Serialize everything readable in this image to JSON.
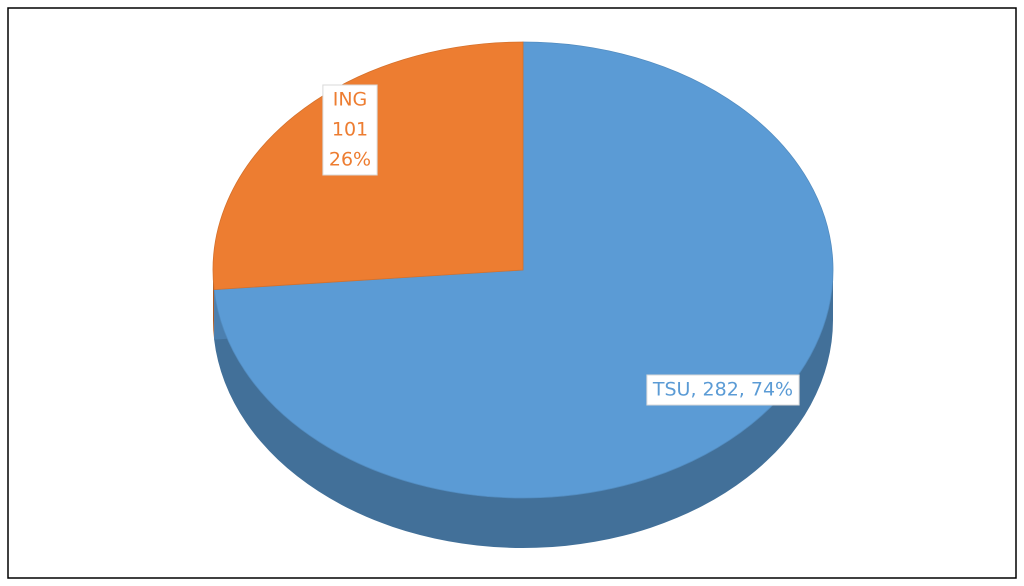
{
  "chart_data": {
    "type": "pie",
    "categories": [
      "TSU",
      "ING"
    ],
    "values": [
      282,
      101
    ],
    "value_labels": [
      [
        "TSU, 282, 74%"
      ],
      [
        "ING",
        "101",
        "26%"
      ]
    ],
    "colors": [
      "#5b9bd5",
      "#ed7d31"
    ]
  }
}
